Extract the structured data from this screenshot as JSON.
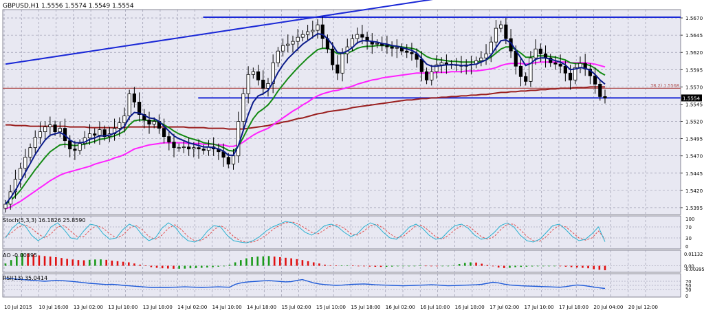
{
  "symbol_header": "GBPUSD,H1  1.5556 1.5574 1.5549 1.5554",
  "colors": {
    "background": "#e8e8f2",
    "grid": "#8a8aa0",
    "candle": "#000000",
    "ema_fast": "#0a1a8a",
    "ema_mid": "#148a14",
    "ema_slow": "#ff20ff",
    "ma_long": "#9a2020",
    "trendline": "#1a28d6",
    "fib_line": "#b05050",
    "stoch_main": "#2ab0d0",
    "stoch_signal": "#e05050",
    "ao_up": "#1a9a1a",
    "ao_down": "#e01010",
    "rsi": "#1e5ad8"
  },
  "chart_data": [
    {
      "type": "candlestick",
      "title": "GBPUSD,H1",
      "ohlc_readout": {
        "open": 1.5556,
        "high": 1.5574,
        "low": 1.5549,
        "close": 1.5554
      },
      "y_ticks": [
        "1.5670",
        "1.5645",
        "1.5620",
        "1.5595",
        "1.5570",
        "1.5545",
        "1.5520",
        "1.5495",
        "1.5470",
        "1.5445",
        "1.5420",
        "1.5395"
      ],
      "ylim": [
        1.5385,
        1.5682
      ],
      "current_price_label": "1.5554",
      "fib_label": "38.2) 1.5568",
      "x_ticks": [
        "10 Jul 2015",
        "10 Jul 16:00",
        "13 Jul 02:00",
        "13 Jul 10:00",
        "13 Jul 18:00",
        "14 Jul 02:00",
        "14 Jul 10:00",
        "14 Jul 18:00",
        "15 Jul 02:00",
        "15 Jul 10:00",
        "15 Jul 18:00",
        "16 Jul 02:00",
        "16 Jul 10:00",
        "16 Jul 18:00",
        "17 Jul 02:00",
        "17 Jul 10:00",
        "17 Jul 18:00",
        "20 Jul 04:00",
        "20 Jul 12:00"
      ],
      "closes": [
        1.54,
        1.5418,
        1.5436,
        1.5452,
        1.5468,
        1.5482,
        1.5497,
        1.5505,
        1.5512,
        1.5515,
        1.5505,
        1.551,
        1.5492,
        1.548,
        1.5478,
        1.5488,
        1.5496,
        1.5502,
        1.55,
        1.5508,
        1.5498,
        1.5502,
        1.551,
        1.5518,
        1.5528,
        1.556,
        1.5548,
        1.553,
        1.5522,
        1.5516,
        1.552,
        1.551,
        1.5498,
        1.549,
        1.5482,
        1.5482,
        1.5483,
        1.548,
        1.5482,
        1.548,
        1.5478,
        1.5483,
        1.548,
        1.5476,
        1.5468,
        1.5458,
        1.547,
        1.552,
        1.556,
        1.5588,
        1.5592,
        1.558,
        1.5568,
        1.5575,
        1.5605,
        1.5622,
        1.563,
        1.5632,
        1.5636,
        1.5642,
        1.5646,
        1.565,
        1.5652,
        1.566,
        1.564,
        1.5625,
        1.5602,
        1.559,
        1.5618,
        1.5628,
        1.564,
        1.5646,
        1.5642,
        1.5636,
        1.5632,
        1.5633,
        1.563,
        1.5628,
        1.5626,
        1.5627,
        1.5622,
        1.562,
        1.5618,
        1.561,
        1.5592,
        1.558,
        1.5592,
        1.5602,
        1.5605,
        1.5603,
        1.5602,
        1.5601,
        1.56,
        1.5602,
        1.5603,
        1.5608,
        1.5612,
        1.5618,
        1.5635,
        1.5655,
        1.566,
        1.564,
        1.5622,
        1.56,
        1.5585,
        1.5578,
        1.5612,
        1.5625,
        1.5618,
        1.5612,
        1.5605,
        1.5603,
        1.56,
        1.559,
        1.558,
        1.5598,
        1.5604,
        1.5596,
        1.5586,
        1.5574,
        1.5556,
        1.5554
      ],
      "ema_fast": [
        1.54,
        1.5409,
        1.542,
        1.5433,
        1.5446,
        1.5459,
        1.5472,
        1.5483,
        1.5493,
        1.55,
        1.5502,
        1.5504,
        1.55,
        1.5493,
        1.5489,
        1.5489,
        1.549,
        1.5494,
        1.5496,
        1.5499,
        1.5499,
        1.55,
        1.5503,
        1.5507,
        1.5513,
        1.5526,
        1.5533,
        1.5532,
        1.5529,
        1.5525,
        1.5524,
        1.552,
        1.5513,
        1.5506,
        1.5499,
        1.5495,
        1.5492,
        1.5489,
        1.5487,
        1.5485,
        1.5483,
        1.5483,
        1.5482,
        1.548,
        1.5477,
        1.5471,
        1.5471,
        1.5485,
        1.5507,
        1.553,
        1.5548,
        1.5557,
        1.556,
        1.5565,
        1.5577,
        1.5591,
        1.5602,
        1.5611,
        1.5618,
        1.5625,
        1.5632,
        1.5637,
        1.5642,
        1.5647,
        1.5646,
        1.564,
        1.5631,
        1.562,
        1.5619,
        1.5622,
        1.5627,
        1.5634,
        1.5637,
        1.5637,
        1.5636,
        1.5635,
        1.5633,
        1.5632,
        1.563,
        1.5629,
        1.5627,
        1.5625,
        1.5623,
        1.5619,
        1.5611,
        1.5603,
        1.56,
        1.56,
        1.5601,
        1.5602,
        1.5602,
        1.5602,
        1.5601,
        1.5601,
        1.5602,
        1.5603,
        1.5606,
        1.5609,
        1.5616,
        1.5627,
        1.5637,
        1.5638,
        1.5634,
        1.5623,
        1.5612,
        1.5601,
        1.5604,
        1.561,
        1.5612,
        1.5612,
        1.561,
        1.5608,
        1.5606,
        1.5602,
        1.5595,
        1.5596,
        1.5598,
        1.5597,
        1.5594,
        1.5588,
        1.558,
        1.5574
      ],
      "ema_mid": [
        1.54,
        1.5405,
        1.5412,
        1.542,
        1.543,
        1.544,
        1.545,
        1.5459,
        1.5468,
        1.5476,
        1.5481,
        1.5486,
        1.5487,
        1.5486,
        1.5485,
        1.5486,
        1.5487,
        1.5489,
        1.5491,
        1.5494,
        1.5495,
        1.5497,
        1.5499,
        1.5502,
        1.5506,
        1.5515,
        1.5521,
        1.5522,
        1.5522,
        1.5521,
        1.5521,
        1.5519,
        1.5515,
        1.5511,
        1.5506,
        1.5502,
        1.5499,
        1.5496,
        1.5494,
        1.5492,
        1.5489,
        1.5488,
        1.5487,
        1.5485,
        1.5482,
        1.5478,
        1.5477,
        1.5484,
        1.5497,
        1.5511,
        1.5524,
        1.5533,
        1.5538,
        1.5544,
        1.5553,
        1.5564,
        1.5573,
        1.5582,
        1.559,
        1.5598,
        1.5605,
        1.5612,
        1.5618,
        1.5624,
        1.5626,
        1.5626,
        1.5623,
        1.5618,
        1.5618,
        1.5619,
        1.5622,
        1.5626,
        1.5628,
        1.5629,
        1.5629,
        1.563,
        1.563,
        1.563,
        1.5629,
        1.5629,
        1.5628,
        1.5627,
        1.5626,
        1.5624,
        1.5619,
        1.5614,
        1.5611,
        1.561,
        1.5609,
        1.5608,
        1.5607,
        1.5607,
        1.5606,
        1.5606,
        1.5606,
        1.5606,
        1.5607,
        1.5609,
        1.5613,
        1.5619,
        1.5625,
        1.5628,
        1.5628,
        1.5624,
        1.5619,
        1.5613,
        1.5613,
        1.5615,
        1.5615,
        1.5615,
        1.5614,
        1.5613,
        1.5611,
        1.5609,
        1.5605,
        1.5604,
        1.5604,
        1.5603,
        1.5601,
        1.5597,
        1.5591,
        1.5587
      ],
      "ema_slow": [
        1.5393,
        1.5396,
        1.54,
        1.5404,
        1.5409,
        1.5414,
        1.5419,
        1.5424,
        1.5429,
        1.5434,
        1.5438,
        1.5442,
        1.5445,
        1.5447,
        1.5449,
        1.5451,
        1.5453,
        1.5455,
        1.5458,
        1.546,
        1.5462,
        1.5464,
        1.5467,
        1.5469,
        1.5472,
        1.5476,
        1.548,
        1.5482,
        1.5484,
        1.5486,
        1.5487,
        1.5488,
        1.5489,
        1.5489,
        1.5489,
        1.5489,
        1.5489,
        1.5488,
        1.5488,
        1.5488,
        1.5487,
        1.5487,
        1.5487,
        1.5486,
        1.5486,
        1.5484,
        1.5484,
        1.5486,
        1.549,
        1.5495,
        1.55,
        1.5504,
        1.5507,
        1.551,
        1.5515,
        1.552,
        1.5525,
        1.553,
        1.5535,
        1.5539,
        1.5544,
        1.5548,
        1.5553,
        1.5557,
        1.556,
        1.5562,
        1.5564,
        1.5565,
        1.5567,
        1.5569,
        1.5571,
        1.5574,
        1.5576,
        1.5578,
        1.558,
        1.5581,
        1.5583,
        1.5584,
        1.5585,
        1.5586,
        1.5587,
        1.5588,
        1.5589,
        1.559,
        1.559,
        1.559,
        1.559,
        1.5591,
        1.5591,
        1.5591,
        1.5592,
        1.5592,
        1.5592,
        1.5593,
        1.5593,
        1.5593,
        1.5594,
        1.5595,
        1.5596,
        1.5598,
        1.5601,
        1.5603,
        1.5604,
        1.5604,
        1.5604,
        1.5603,
        1.5604,
        1.5605,
        1.5606,
        1.5606,
        1.5606,
        1.5606,
        1.5606,
        1.5606,
        1.5605,
        1.5605,
        1.5605,
        1.5605,
        1.5604,
        1.5603,
        1.5601,
        1.5599
      ],
      "ma_long": [
        1.5515,
        1.5515,
        1.5514,
        1.5514,
        1.5514,
        1.5513,
        1.5513,
        1.5513,
        1.5513,
        1.5513,
        1.5513,
        1.5513,
        1.5513,
        1.5512,
        1.5512,
        1.5512,
        1.5512,
        1.5511,
        1.5511,
        1.5511,
        1.5511,
        1.5511,
        1.5511,
        1.5511,
        1.5511,
        1.5512,
        1.5512,
        1.5512,
        1.5512,
        1.5512,
        1.5512,
        1.5512,
        1.5512,
        1.5512,
        1.5512,
        1.5512,
        1.5512,
        1.5511,
        1.5511,
        1.5511,
        1.5511,
        1.551,
        1.551,
        1.551,
        1.551,
        1.5509,
        1.5509,
        1.5509,
        1.5509,
        1.551,
        1.5511,
        1.5512,
        1.5513,
        1.5514,
        1.5516,
        1.5517,
        1.5519,
        1.552,
        1.5522,
        1.5524,
        1.5525,
        1.5527,
        1.5529,
        1.5531,
        1.5532,
        1.5534,
        1.5535,
        1.5536,
        1.5537,
        1.5538,
        1.554,
        1.5541,
        1.5542,
        1.5543,
        1.5544,
        1.5545,
        1.5546,
        1.5547,
        1.5548,
        1.5549,
        1.555,
        1.5551,
        1.5551,
        1.5552,
        1.5553,
        1.5553,
        1.5554,
        1.5554,
        1.5555,
        1.5555,
        1.5556,
        1.5556,
        1.5557,
        1.5557,
        1.5558,
        1.5558,
        1.5559,
        1.5559,
        1.556,
        1.5561,
        1.5562,
        1.5562,
        1.5563,
        1.5563,
        1.5564,
        1.5564,
        1.5565,
        1.5565,
        1.5566,
        1.5566,
        1.5567,
        1.5567,
        1.5568,
        1.5568,
        1.5568,
        1.5569,
        1.5569,
        1.5569,
        1.557,
        1.557,
        1.557,
        1.557
      ],
      "horizontal_levels": [
        {
          "name": "resistance",
          "value": 1.5671,
          "x_start_bar": 41
        },
        {
          "name": "fib-38.2",
          "value": 1.5568,
          "x_start_bar": 0
        },
        {
          "name": "support",
          "value": 1.5554,
          "x_start_bar": 40
        }
      ],
      "trendline": {
        "start_bar": 0,
        "start_value": 1.5603,
        "end_bar": 90,
        "end_value": 1.5701
      }
    },
    {
      "type": "line",
      "title": "Stoch(5,3,3) 16.1826 25.8590",
      "y_ticks": [
        "100",
        "70",
        "30",
        "0"
      ],
      "ylim": [
        0,
        100
      ],
      "series": [
        {
          "name": "main",
          "values": [
            30,
            65,
            85,
            75,
            40,
            20,
            35,
            70,
            85,
            60,
            30,
            25,
            55,
            80,
            75,
            45,
            25,
            30,
            60,
            80,
            70,
            40,
            20,
            30,
            65,
            85,
            70,
            40,
            20,
            15,
            25,
            55,
            75,
            70,
            40,
            20,
            15,
            12,
            20,
            35,
            55,
            70,
            80,
            90,
            85,
            70,
            50,
            40,
            55,
            75,
            80,
            70,
            50,
            35,
            45,
            70,
            85,
            75,
            50,
            30,
            25,
            45,
            70,
            80,
            65,
            40,
            25,
            30,
            55,
            75,
            80,
            65,
            40,
            25,
            30,
            50,
            75,
            85,
            70,
            40,
            20,
            15,
            25,
            50,
            75,
            80,
            60,
            35,
            20,
            25,
            45,
            70,
            16
          ]
        },
        {
          "name": "signal",
          "values": [
            35,
            50,
            70,
            78,
            65,
            45,
            30,
            45,
            70,
            75,
            55,
            35,
            35,
            60,
            75,
            65,
            45,
            30,
            40,
            65,
            75,
            60,
            35,
            25,
            40,
            65,
            78,
            60,
            35,
            20,
            20,
            35,
            60,
            75,
            60,
            35,
            20,
            14,
            15,
            25,
            40,
            60,
            75,
            85,
            88,
            80,
            65,
            50,
            45,
            60,
            75,
            78,
            65,
            45,
            40,
            55,
            75,
            80,
            65,
            45,
            30,
            35,
            55,
            75,
            75,
            55,
            35,
            25,
            40,
            60,
            75,
            75,
            55,
            35,
            25,
            35,
            60,
            80,
            80,
            60,
            35,
            20,
            18,
            35,
            60,
            75,
            70,
            50,
            30,
            22,
            30,
            55,
            26
          ]
        }
      ]
    },
    {
      "type": "bar",
      "title": "AO -0.00395",
      "y_ticks": [
        "0.01132",
        "0.00",
        "-0.00395"
      ],
      "ylim": [
        -0.0045,
        0.0123
      ],
      "values": [
        0.002,
        0.005,
        0.0085,
        0.011,
        0.0105,
        0.0098,
        0.009,
        0.0085,
        0.008,
        0.0075,
        0.0068,
        0.006,
        0.0055,
        0.005,
        0.0048,
        0.0052,
        0.0055,
        0.0056,
        0.0052,
        0.0045,
        0.004,
        0.0035,
        0.003,
        0.002,
        0.001,
        0.0002,
        -0.0012,
        -0.0018,
        -0.0022,
        -0.0024,
        -0.0026,
        -0.0026,
        -0.0025,
        -0.0022,
        -0.002,
        -0.0018,
        -0.0015,
        -0.0012,
        -0.0008,
        -0.0005,
        0.001,
        0.003,
        0.005,
        0.0065,
        0.0075,
        0.008,
        0.0082,
        0.0085,
        0.008,
        0.0075,
        0.007,
        0.0065,
        0.0058,
        0.005,
        0.004,
        0.003,
        0.002,
        0.001,
        0.0004,
        0.0002,
        0.0003,
        0.0004,
        0.0002,
        -0.0002,
        -0.0005,
        -0.0007,
        -0.0009,
        -0.001,
        -0.0009,
        -0.0007,
        -0.0005,
        -0.0003,
        -0.0002,
        -0.0001,
        0.0002,
        0.0001,
        -0.0002,
        -0.0004,
        -0.0003,
        -0.0002,
        0.0005,
        0.0015,
        0.0025,
        0.003,
        0.0028,
        0.0018,
        0.0008,
        -0.0005,
        -0.0015,
        -0.002,
        -0.0018,
        -0.0012,
        -0.001,
        -0.0008,
        -0.0006,
        -0.0005,
        -0.0004,
        -0.0003,
        -0.0002,
        -0.0004,
        -0.0008,
        -0.0012,
        -0.0015,
        -0.0018,
        -0.0022,
        -0.003,
        -0.0035,
        -0.0039
      ]
    },
    {
      "type": "line",
      "title": "RSI(13) 35.0414",
      "y_ticks": [
        "70",
        "50",
        "30",
        "0"
      ],
      "ylim": [
        0,
        100
      ],
      "series": [
        {
          "name": "rsi",
          "values": [
            85,
            83,
            80,
            78,
            76,
            74,
            72,
            70,
            72,
            74,
            73,
            71,
            69,
            66,
            63,
            60,
            58,
            56,
            54,
            55,
            53,
            50,
            48,
            46,
            44,
            42,
            40,
            40,
            40,
            40,
            41,
            42,
            43,
            42,
            41,
            40,
            41,
            42,
            43,
            42,
            41,
            55,
            62,
            66,
            68,
            70,
            72,
            73,
            71,
            69,
            67,
            68,
            74,
            78,
            70,
            62,
            57,
            54,
            52,
            50,
            51,
            53,
            55,
            56,
            57,
            55,
            53,
            52,
            51,
            50,
            49,
            48,
            49,
            50,
            51,
            52,
            53,
            52,
            50,
            48,
            49,
            50,
            51,
            52,
            53,
            55,
            60,
            65,
            62,
            56,
            52,
            50,
            48,
            47,
            46,
            45,
            44,
            43,
            42,
            41,
            44,
            48,
            52,
            50,
            46,
            42,
            38,
            35
          ]
        }
      ]
    }
  ]
}
